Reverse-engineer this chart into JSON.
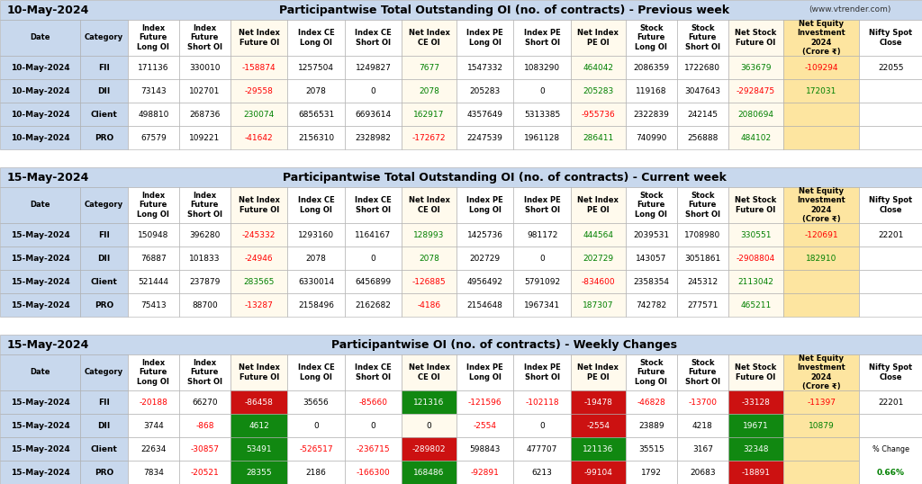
{
  "title1_date": "10-May-2024",
  "title1_main": "Participantwise Total Outstanding OI (no. of contracts) - Previous week",
  "title1_url": "(www.vtrender.com)",
  "title2_date": "15-May-2024",
  "title2_main": "Participantwise Total Outstanding OI (no. of contracts) - Current week",
  "title3_date": "15-May-2024",
  "title3_main": "Participantwise OI (no. of contracts) - Weekly Changes",
  "col_headers": [
    "Date",
    "Category",
    "Index\nFuture\nLong OI",
    "Index\nFuture\nShort OI",
    "Net Index\nFuture OI",
    "Index CE\nLong OI",
    "Index CE\nShort OI",
    "Net Index\nCE OI",
    "Index PE\nLong OI",
    "Index PE\nShort OI",
    "Net Index\nPE OI",
    "Stock\nFuture\nLong OI",
    "Stock\nFuture\nShort OI",
    "Net Stock\nFuture OI",
    "Net Equity\nInvestment\n2024\n(Crore ₹)",
    "Nifty Spot\nClose"
  ],
  "section1_rows": [
    [
      "10-May-2024",
      "FII",
      "171136",
      "330010",
      "-158874",
      "1257504",
      "1249827",
      "7677",
      "1547332",
      "1083290",
      "464042",
      "2086359",
      "1722680",
      "363679",
      "-109294",
      "22055"
    ],
    [
      "10-May-2024",
      "DII",
      "73143",
      "102701",
      "-29558",
      "2078",
      "0",
      "2078",
      "205283",
      "0",
      "205283",
      "119168",
      "3047643",
      "-2928475",
      "172031",
      ""
    ],
    [
      "10-May-2024",
      "Client",
      "498810",
      "268736",
      "230074",
      "6856531",
      "6693614",
      "162917",
      "4357649",
      "5313385",
      "-955736",
      "2322839",
      "242145",
      "2080694",
      "",
      ""
    ],
    [
      "10-May-2024",
      "PRO",
      "67579",
      "109221",
      "-41642",
      "2156310",
      "2328982",
      "-172672",
      "2247539",
      "1961128",
      "286411",
      "740990",
      "256888",
      "484102",
      "",
      ""
    ]
  ],
  "section1_colors": {
    "col4": [
      "red",
      "red",
      "green",
      "red"
    ],
    "col7": [
      "green",
      "green",
      "green",
      "red"
    ],
    "col10": [
      "green",
      "green",
      "red",
      "green"
    ],
    "col13": [
      "green",
      "red",
      "green",
      "green"
    ],
    "col14": [
      "red",
      "green",
      "",
      ""
    ]
  },
  "section2_rows": [
    [
      "15-May-2024",
      "FII",
      "150948",
      "396280",
      "-245332",
      "1293160",
      "1164167",
      "128993",
      "1425736",
      "981172",
      "444564",
      "2039531",
      "1708980",
      "330551",
      "-120691",
      "22201"
    ],
    [
      "15-May-2024",
      "DII",
      "76887",
      "101833",
      "-24946",
      "2078",
      "0",
      "2078",
      "202729",
      "0",
      "202729",
      "143057",
      "3051861",
      "-2908804",
      "182910",
      ""
    ],
    [
      "15-May-2024",
      "Client",
      "521444",
      "237879",
      "283565",
      "6330014",
      "6456899",
      "-126885",
      "4956492",
      "5791092",
      "-834600",
      "2358354",
      "245312",
      "2113042",
      "",
      ""
    ],
    [
      "15-May-2024",
      "PRO",
      "75413",
      "88700",
      "-13287",
      "2158496",
      "2162682",
      "-4186",
      "2154648",
      "1967341",
      "187307",
      "742782",
      "277571",
      "465211",
      "",
      ""
    ]
  ],
  "section2_colors": {
    "col4": [
      "red",
      "red",
      "green",
      "red"
    ],
    "col7": [
      "green",
      "green",
      "red",
      "red"
    ],
    "col10": [
      "green",
      "green",
      "red",
      "green"
    ],
    "col13": [
      "green",
      "red",
      "green",
      "green"
    ],
    "col14": [
      "red",
      "green",
      "",
      ""
    ]
  },
  "section3_rows": [
    [
      "15-May-2024",
      "FII",
      "-20188",
      "66270",
      "-86458",
      "35656",
      "-85660",
      "121316",
      "-121596",
      "-102118",
      "-19478",
      "-46828",
      "-13700",
      "-33128",
      "-11397",
      "22201"
    ],
    [
      "15-May-2024",
      "DII",
      "3744",
      "-868",
      "4612",
      "0",
      "0",
      "0",
      "-2554",
      "0",
      "-2554",
      "23889",
      "4218",
      "19671",
      "10879",
      ""
    ],
    [
      "15-May-2024",
      "Client",
      "22634",
      "-30857",
      "53491",
      "-526517",
      "-236715",
      "-289802",
      "598843",
      "477707",
      "121136",
      "35515",
      "3167",
      "32348",
      "",
      ""
    ],
    [
      "15-May-2024",
      "PRO",
      "7834",
      "-20521",
      "28355",
      "2186",
      "-166300",
      "168486",
      "-92891",
      "6213",
      "-99104",
      "1792",
      "20683",
      "-18891",
      "",
      ""
    ]
  ],
  "section3_text_colors": {
    "col2": [
      "red",
      "black",
      "black",
      "black"
    ],
    "col3": [
      "black",
      "red",
      "red",
      "red"
    ],
    "col5": [
      "black",
      "black",
      "red",
      "black"
    ],
    "col6": [
      "red",
      "black",
      "red",
      "red"
    ],
    "col8": [
      "red",
      "red",
      "black",
      "red"
    ],
    "col9": [
      "red",
      "black",
      "black",
      "black"
    ],
    "col11": [
      "red",
      "black",
      "black",
      "black"
    ],
    "col12": [
      "red",
      "black",
      "black",
      "black"
    ],
    "col14": [
      "red",
      "green",
      "",
      ""
    ]
  },
  "section3_bg_colors": {
    "col4": [
      "red",
      "green",
      "green",
      "green"
    ],
    "col7": [
      "green",
      "none",
      "red",
      "green"
    ],
    "col10": [
      "red",
      "red",
      "green",
      "red"
    ],
    "col13": [
      "red",
      "green",
      "green",
      "red"
    ]
  },
  "pct_change": "0.66%",
  "header_bg": "#c8d8ed",
  "white_bg": "#ffffff",
  "yellow_bg": "#fffaed",
  "orange_bg": "#fde5a0",
  "red_cell": "#cc1111",
  "green_cell": "#118811",
  "border_col": "#aaaaaa",
  "title_fs": 9,
  "header_fs": 6.0,
  "cell_fs": 6.5
}
